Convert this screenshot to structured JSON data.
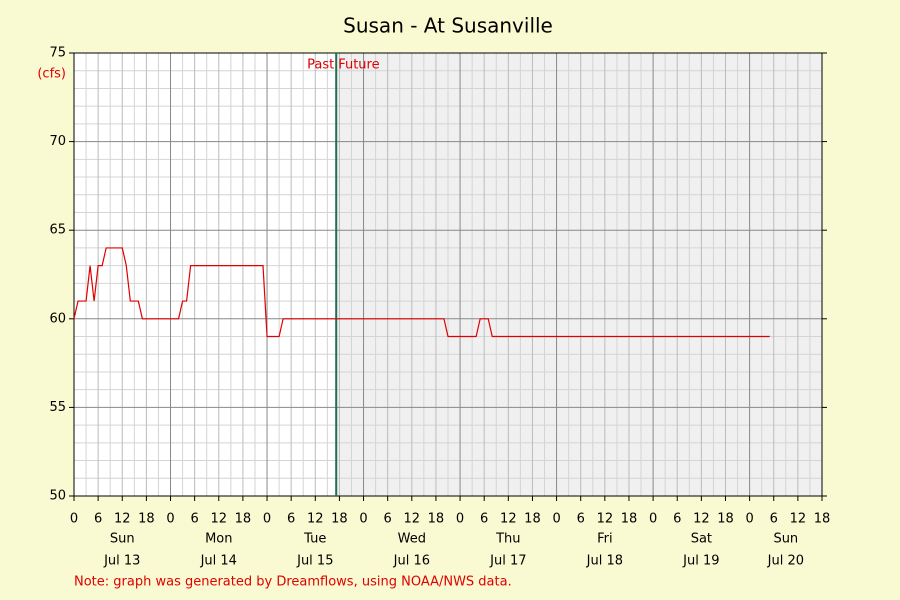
{
  "chart_data": {
    "type": "line",
    "title": "Susan - At Susanville",
    "y_unit": "(cfs)",
    "note": "Note: graph was generated by Dreamflows, using NOAA/NWS data.",
    "color": "#e00000",
    "x": [
      0,
      1,
      3,
      4,
      5,
      6,
      7,
      8,
      12,
      13,
      14,
      16,
      17,
      26,
      27,
      28,
      29,
      47,
      48,
      51,
      52,
      92,
      93,
      100,
      101,
      103,
      104,
      173
    ],
    "values": [
      60,
      61,
      61,
      63,
      61,
      63,
      63,
      64,
      64,
      63,
      61,
      61,
      60,
      60,
      61,
      61,
      63,
      63,
      59,
      59,
      60,
      60,
      59,
      59,
      60,
      60,
      59,
      59
    ],
    "xlim": [
      0,
      186
    ],
    "ylim": [
      50,
      75
    ],
    "yticks": [
      50,
      55,
      60,
      65,
      70,
      75
    ],
    "xticks": [
      {
        "value": 0,
        "label": "0"
      },
      {
        "value": 6,
        "label": "6"
      },
      {
        "value": 12,
        "label": "12"
      },
      {
        "value": 18,
        "label": "18"
      },
      {
        "value": 24,
        "label": "0"
      },
      {
        "value": 30,
        "label": "6"
      },
      {
        "value": 36,
        "label": "12"
      },
      {
        "value": 42,
        "label": "18"
      },
      {
        "value": 48,
        "label": "0"
      },
      {
        "value": 54,
        "label": "6"
      },
      {
        "value": 60,
        "label": "12"
      },
      {
        "value": 66,
        "label": "18"
      },
      {
        "value": 72,
        "label": "0"
      },
      {
        "value": 78,
        "label": "6"
      },
      {
        "value": 84,
        "label": "12"
      },
      {
        "value": 90,
        "label": "18"
      },
      {
        "value": 96,
        "label": "0"
      },
      {
        "value": 102,
        "label": "6"
      },
      {
        "value": 108,
        "label": "12"
      },
      {
        "value": 114,
        "label": "18"
      },
      {
        "value": 120,
        "label": "0"
      },
      {
        "value": 126,
        "label": "6"
      },
      {
        "value": 132,
        "label": "12"
      },
      {
        "value": 138,
        "label": "18"
      },
      {
        "value": 144,
        "label": "0"
      },
      {
        "value": 150,
        "label": "6"
      },
      {
        "value": 156,
        "label": "12"
      },
      {
        "value": 162,
        "label": "18"
      },
      {
        "value": 168,
        "label": "0"
      },
      {
        "value": 174,
        "label": "6"
      },
      {
        "value": 180,
        "label": "12"
      },
      {
        "value": 186,
        "label": "18"
      }
    ],
    "days": [
      {
        "value": 0,
        "weekday": "Sun",
        "date": "Jul 13"
      },
      {
        "value": 24,
        "weekday": "Mon",
        "date": "Jul 14"
      },
      {
        "value": 48,
        "weekday": "Tue",
        "date": "Jul 15"
      },
      {
        "value": 72,
        "weekday": "Wed",
        "date": "Jul 16"
      },
      {
        "value": 96,
        "weekday": "Thu",
        "date": "Jul 17"
      },
      {
        "value": 120,
        "weekday": "Fri",
        "date": "Jul 18"
      },
      {
        "value": 144,
        "weekday": "Sat",
        "date": "Jul 19"
      },
      {
        "value": 168,
        "weekday": "Sun",
        "date": "Jul 20"
      }
    ],
    "now": {
      "value": 65.2,
      "past_label": "Past",
      "future_label": "Future"
    },
    "grid": true
  }
}
